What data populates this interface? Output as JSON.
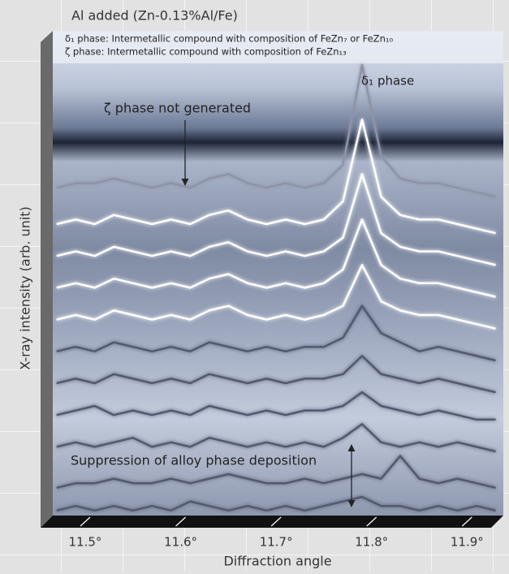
{
  "chart_data": {
    "type": "line",
    "title": "Al added (Zn-0.13%Al/Fe)",
    "notes": [
      "δ₁ phase: Intermetallic compound with composition of FeZn₇ or FeZn₁₀",
      "ζ phase:  Intermetallic compound with composition of FeZn₁₃"
    ],
    "annotations": [
      "δ₁ phase",
      "ζ phase not generated",
      "Suppression of alloy phase deposition"
    ],
    "x_label": "Diffraction angle",
    "y_label": "X-ray intensity (arb. unit)",
    "x": [
      11.47,
      11.49,
      11.51,
      11.53,
      11.55,
      11.57,
      11.59,
      11.61,
      11.63,
      11.65,
      11.67,
      11.69,
      11.71,
      11.73,
      11.75,
      11.77,
      11.79,
      11.81,
      11.83,
      11.85,
      11.87,
      11.89,
      11.91,
      11.93
    ],
    "xlim": [
      11.466,
      11.938
    ],
    "ylim": [
      0,
      100
    ],
    "xticks": [
      {
        "value": 11.5,
        "label": "11.5°"
      },
      {
        "value": 11.6,
        "label": "11.6°"
      },
      {
        "value": 11.7,
        "label": "11.7°"
      },
      {
        "value": 11.8,
        "label": "11.8°"
      },
      {
        "value": 11.9,
        "label": "11.9°"
      }
    ],
    "series": [
      {
        "color": "#525a70",
        "values": [
          2,
          3,
          2,
          3,
          2,
          3,
          2,
          4,
          3,
          2,
          3,
          2,
          3,
          2,
          3,
          4,
          5,
          3,
          3,
          2,
          3,
          2,
          3,
          2
        ]
      },
      {
        "color": "#525a70",
        "values": [
          7,
          8,
          8,
          9,
          8,
          8,
          9,
          8,
          9,
          10,
          9,
          8,
          8,
          9,
          8,
          9,
          10,
          9,
          14,
          9,
          8,
          9,
          8,
          7
        ]
      },
      {
        "color": "#525a70",
        "values": [
          16,
          17,
          16,
          17,
          18,
          16,
          17,
          16,
          18,
          17,
          16,
          17,
          16,
          17,
          16,
          18,
          21,
          17,
          16,
          17,
          16,
          17,
          16,
          15
        ]
      },
      {
        "color": "#525a70",
        "values": [
          23,
          24,
          25,
          23,
          24,
          23,
          24,
          23,
          25,
          24,
          23,
          24,
          23,
          24,
          24,
          25,
          28,
          25,
          24,
          23,
          24,
          23,
          22,
          22
        ]
      },
      {
        "color": "#525a70",
        "values": [
          30,
          31,
          30,
          32,
          31,
          30,
          31,
          30,
          32,
          31,
          30,
          31,
          30,
          31,
          31,
          32,
          36,
          32,
          31,
          30,
          31,
          30,
          29,
          28
        ]
      },
      {
        "color": "#525a70",
        "values": [
          37,
          38,
          37,
          39,
          38,
          37,
          38,
          37,
          39,
          38,
          37,
          38,
          37,
          38,
          38,
          40,
          47,
          41,
          39,
          37,
          38,
          37,
          36,
          35
        ]
      },
      {
        "color": "#ffffff",
        "values": [
          44,
          45,
          44,
          46,
          45,
          44,
          45,
          44,
          46,
          47,
          45,
          44,
          45,
          44,
          45,
          47,
          56,
          48,
          46,
          45,
          45,
          44,
          43,
          42
        ]
      },
      {
        "color": "#ffffff",
        "values": [
          51,
          52,
          51,
          53,
          52,
          51,
          52,
          51,
          53,
          54,
          52,
          51,
          52,
          51,
          52,
          55,
          66,
          56,
          53,
          52,
          52,
          51,
          50,
          49
        ]
      },
      {
        "color": "#ffffff",
        "values": [
          58,
          59,
          58,
          60,
          59,
          58,
          59,
          58,
          60,
          61,
          59,
          58,
          59,
          58,
          59,
          62,
          76,
          63,
          60,
          59,
          59,
          58,
          57,
          56
        ]
      },
      {
        "color": "#ffffff",
        "values": [
          65,
          66,
          65,
          67,
          66,
          65,
          66,
          65,
          67,
          68,
          66,
          65,
          66,
          65,
          66,
          70,
          88,
          71,
          67,
          66,
          66,
          65,
          64,
          63
        ]
      },
      {
        "color": "#8e94a8",
        "values": [
          73,
          74,
          74,
          75,
          74,
          73,
          74,
          73,
          75,
          76,
          74,
          73,
          74,
          73,
          74,
          78,
          100,
          80,
          75,
          74,
          74,
          73,
          72,
          71
        ]
      }
    ]
  }
}
